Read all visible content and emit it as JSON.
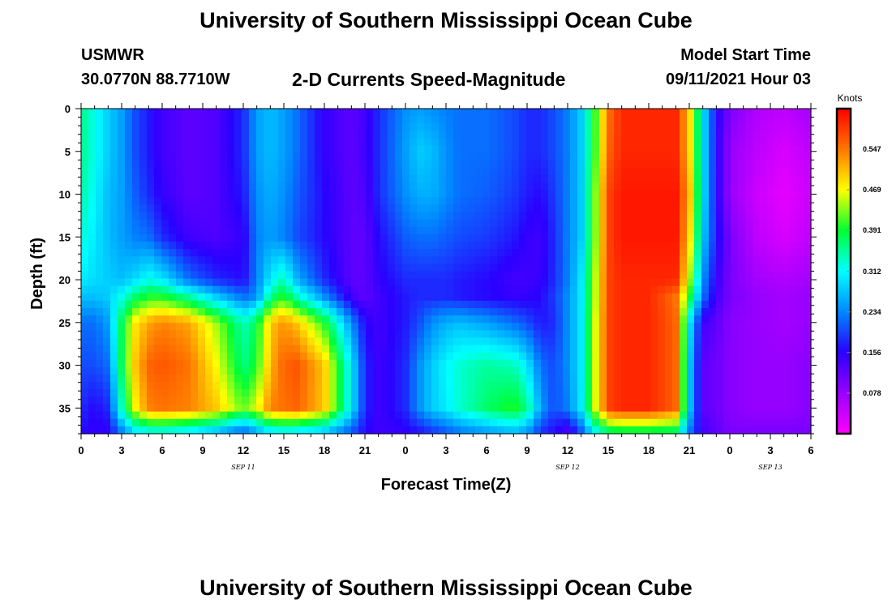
{
  "header": {
    "title": "University of Southern Mississippi Ocean Cube",
    "station": "USMWR",
    "coords": "30.0770N  88.7710W",
    "chart_title": "2-D Currents Speed-Magnitude",
    "start_label": "Model Start Time",
    "start_value": "09/11/2021 Hour 03"
  },
  "footer": {
    "title": "University of Southern Mississippi Ocean Cube"
  },
  "colors": {
    "palette": [
      "#ff00ff",
      "#9900ff",
      "#2a00ff",
      "#0088ff",
      "#00ffff",
      "#00ff33",
      "#ffff00",
      "#ff7700",
      "#ff0000"
    ]
  },
  "chart_data": {
    "type": "heatmap",
    "xlabel": "Forecast Time(Z)",
    "ylabel": "Depth (ft)",
    "x_tick_labels": [
      "0",
      "3",
      "6",
      "9",
      "12",
      "15",
      "18",
      "21",
      "0",
      "3",
      "6",
      "9",
      "12",
      "15",
      "18",
      "21",
      "0",
      "3",
      "6"
    ],
    "x_hours": [
      0,
      3,
      6,
      9,
      12,
      15,
      18,
      21,
      24,
      27,
      30,
      33,
      36,
      39,
      42,
      45,
      48,
      51,
      54
    ],
    "xlim": [
      0,
      54
    ],
    "day_labels": [
      {
        "text": "SEP 11",
        "hour": 12
      },
      {
        "text": "SEP 12",
        "hour": 36
      },
      {
        "text": "SEP 13",
        "hour": 51
      }
    ],
    "y_ticks": [
      0,
      5,
      10,
      15,
      20,
      25,
      30,
      35
    ],
    "ylim": [
      0,
      38
    ],
    "y_inverted": true,
    "colorbar": {
      "title": "Knots",
      "ticks": [
        "0.078",
        "0.156",
        "0.234",
        "0.312",
        "0.391",
        "0.469",
        "0.547"
      ],
      "range": [
        0,
        0.625
      ]
    },
    "depths_ft": [
      0,
      5,
      10,
      15,
      20,
      22,
      25,
      30,
      35,
      38
    ],
    "hours": [
      0,
      1,
      2,
      3,
      4,
      5,
      6,
      8,
      10,
      12,
      13,
      14,
      15,
      16,
      18,
      20,
      21,
      22,
      24,
      25,
      26,
      27,
      28,
      30,
      32,
      33,
      34,
      35,
      36,
      37,
      38,
      39,
      40,
      42,
      44,
      45,
      46,
      47,
      48,
      50,
      52,
      54
    ],
    "speed_knots": [
      [
        0.36,
        0.32,
        0.28,
        0.25,
        0.2,
        0.17,
        0.14,
        0.12,
        0.13,
        0.18,
        0.25,
        0.27,
        0.25,
        0.22,
        0.15,
        0.12,
        0.14,
        0.18,
        0.24,
        0.25,
        0.24,
        0.23,
        0.22,
        0.22,
        0.2,
        0.18,
        0.18,
        0.2,
        0.23,
        0.28,
        0.4,
        0.55,
        0.6,
        0.6,
        0.6,
        0.5,
        0.3,
        0.16,
        0.1,
        0.06,
        0.05,
        0.07
      ],
      [
        0.36,
        0.32,
        0.28,
        0.25,
        0.2,
        0.17,
        0.14,
        0.12,
        0.13,
        0.18,
        0.25,
        0.27,
        0.25,
        0.22,
        0.15,
        0.12,
        0.14,
        0.18,
        0.25,
        0.28,
        0.27,
        0.24,
        0.22,
        0.22,
        0.2,
        0.18,
        0.18,
        0.2,
        0.23,
        0.28,
        0.4,
        0.56,
        0.6,
        0.6,
        0.6,
        0.5,
        0.3,
        0.16,
        0.08,
        0.05,
        0.03,
        0.05
      ],
      [
        0.35,
        0.31,
        0.27,
        0.25,
        0.21,
        0.18,
        0.15,
        0.12,
        0.13,
        0.17,
        0.24,
        0.26,
        0.24,
        0.21,
        0.16,
        0.12,
        0.13,
        0.18,
        0.24,
        0.26,
        0.26,
        0.24,
        0.22,
        0.21,
        0.19,
        0.17,
        0.16,
        0.19,
        0.23,
        0.28,
        0.42,
        0.58,
        0.61,
        0.61,
        0.61,
        0.52,
        0.3,
        0.16,
        0.08,
        0.04,
        0.02,
        0.04
      ],
      [
        0.33,
        0.3,
        0.27,
        0.25,
        0.23,
        0.22,
        0.18,
        0.14,
        0.13,
        0.15,
        0.23,
        0.25,
        0.23,
        0.2,
        0.16,
        0.12,
        0.12,
        0.16,
        0.21,
        0.22,
        0.22,
        0.21,
        0.2,
        0.19,
        0.17,
        0.15,
        0.14,
        0.18,
        0.23,
        0.28,
        0.42,
        0.58,
        0.61,
        0.61,
        0.61,
        0.5,
        0.28,
        0.17,
        0.1,
        0.05,
        0.03,
        0.05
      ],
      [
        0.3,
        0.29,
        0.28,
        0.27,
        0.29,
        0.32,
        0.3,
        0.22,
        0.18,
        0.16,
        0.23,
        0.3,
        0.34,
        0.26,
        0.18,
        0.12,
        0.12,
        0.15,
        0.18,
        0.18,
        0.18,
        0.18,
        0.17,
        0.16,
        0.14,
        0.14,
        0.15,
        0.18,
        0.23,
        0.3,
        0.44,
        0.58,
        0.6,
        0.6,
        0.6,
        0.45,
        0.24,
        0.15,
        0.1,
        0.07,
        0.06,
        0.07
      ],
      [
        0.27,
        0.27,
        0.28,
        0.32,
        0.37,
        0.4,
        0.4,
        0.35,
        0.28,
        0.22,
        0.24,
        0.36,
        0.4,
        0.34,
        0.24,
        0.14,
        0.12,
        0.14,
        0.17,
        0.18,
        0.18,
        0.18,
        0.17,
        0.16,
        0.15,
        0.15,
        0.16,
        0.19,
        0.24,
        0.3,
        0.44,
        0.58,
        0.6,
        0.6,
        0.55,
        0.4,
        0.22,
        0.14,
        0.1,
        0.08,
        0.07,
        0.08
      ],
      [
        0.22,
        0.22,
        0.25,
        0.38,
        0.48,
        0.52,
        0.54,
        0.52,
        0.44,
        0.34,
        0.38,
        0.5,
        0.53,
        0.5,
        0.4,
        0.24,
        0.16,
        0.14,
        0.17,
        0.2,
        0.24,
        0.26,
        0.27,
        0.25,
        0.22,
        0.2,
        0.17,
        0.18,
        0.24,
        0.3,
        0.45,
        0.58,
        0.6,
        0.6,
        0.56,
        0.3,
        0.14,
        0.12,
        0.09,
        0.08,
        0.07,
        0.08
      ],
      [
        0.2,
        0.2,
        0.22,
        0.38,
        0.5,
        0.56,
        0.57,
        0.55,
        0.47,
        0.36,
        0.4,
        0.51,
        0.56,
        0.57,
        0.5,
        0.3,
        0.18,
        0.14,
        0.18,
        0.24,
        0.28,
        0.31,
        0.33,
        0.35,
        0.34,
        0.3,
        0.22,
        0.2,
        0.24,
        0.3,
        0.45,
        0.58,
        0.6,
        0.6,
        0.56,
        0.28,
        0.12,
        0.11,
        0.09,
        0.08,
        0.08,
        0.09
      ],
      [
        0.18,
        0.16,
        0.18,
        0.34,
        0.47,
        0.54,
        0.55,
        0.54,
        0.5,
        0.42,
        0.46,
        0.54,
        0.55,
        0.56,
        0.5,
        0.3,
        0.18,
        0.14,
        0.18,
        0.24,
        0.28,
        0.3,
        0.33,
        0.37,
        0.4,
        0.36,
        0.25,
        0.2,
        0.23,
        0.3,
        0.45,
        0.58,
        0.6,
        0.6,
        0.56,
        0.28,
        0.12,
        0.11,
        0.09,
        0.08,
        0.08,
        0.09
      ],
      [
        0.16,
        0.15,
        0.15,
        0.22,
        0.28,
        0.3,
        0.3,
        0.28,
        0.25,
        0.2,
        0.24,
        0.28,
        0.29,
        0.28,
        0.26,
        0.2,
        0.16,
        0.14,
        0.15,
        0.16,
        0.18,
        0.2,
        0.22,
        0.24,
        0.26,
        0.24,
        0.18,
        0.16,
        0.12,
        0.2,
        0.3,
        0.35,
        0.36,
        0.36,
        0.35,
        0.22,
        0.14,
        0.12,
        0.1,
        0.1,
        0.1,
        0.1
      ]
    ]
  }
}
